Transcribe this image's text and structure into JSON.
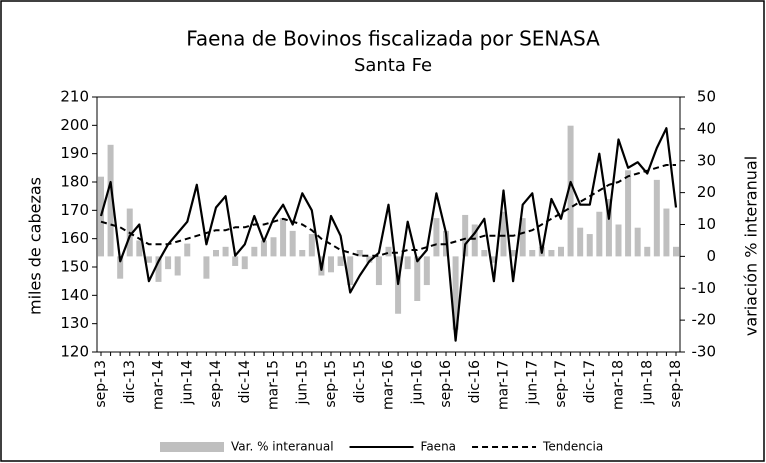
{
  "chart_data": {
    "type": "combo",
    "title": "Faena de Bovinos fiscalizada por SENASA",
    "subtitle": "Santa Fe",
    "y_label": "miles de cabezas",
    "y2_label": "variación % interanual",
    "categories": [
      "sep-13",
      null,
      null,
      "dic-13",
      null,
      null,
      "mar-14",
      null,
      null,
      "jun-14",
      null,
      null,
      "sep-14",
      null,
      null,
      "dic-14",
      null,
      null,
      "mar-15",
      null,
      null,
      "jun-15",
      null,
      null,
      "sep-15",
      null,
      null,
      "dic-15",
      null,
      null,
      "mar-16",
      null,
      null,
      "jun-16",
      null,
      null,
      "sep-16",
      null,
      null,
      "dic-16",
      null,
      null,
      "mar-17",
      null,
      null,
      "jun-17",
      null,
      null,
      "sep-17",
      null,
      null,
      "dic-17",
      null,
      null,
      "mar-18",
      null,
      null,
      "jun-18",
      null,
      null,
      "sep-18"
    ],
    "ylim": [
      120,
      210
    ],
    "yticks": [
      120,
      130,
      140,
      150,
      160,
      170,
      180,
      190,
      200,
      210
    ],
    "y2lim": [
      -30,
      50
    ],
    "y2ticks": [
      -30,
      -20,
      -10,
      0,
      10,
      20,
      30,
      40,
      50
    ],
    "legend": "bottom",
    "series": [
      {
        "name": "Var. % interanual",
        "kind": "bar",
        "axis": "y2",
        "color": "#bfbfbf",
        "values": [
          25,
          35,
          -7,
          15,
          5,
          -2,
          -8,
          -4,
          -6,
          4,
          0,
          -7,
          2,
          3,
          -3,
          -4,
          3,
          5,
          6,
          12,
          8,
          2,
          7,
          -6,
          -5,
          -3,
          -9,
          2,
          -2,
          -9,
          3,
          -18,
          -4,
          -14,
          -9,
          12,
          8,
          -23,
          13,
          10,
          2,
          -2,
          14,
          2,
          12,
          2,
          3,
          2,
          3,
          41,
          9,
          7,
          14,
          18,
          10,
          27,
          9,
          3,
          24,
          15,
          3
        ]
      },
      {
        "name": "Faena",
        "kind": "line",
        "color": "#000000",
        "dashed": false,
        "values": [
          168,
          180,
          152,
          161,
          165,
          145,
          152,
          158,
          162,
          166,
          179,
          158,
          171,
          175,
          154,
          158,
          168,
          159,
          167,
          172,
          165,
          176,
          170,
          149,
          168,
          161,
          141,
          147,
          152,
          155,
          172,
          144,
          166,
          152,
          156,
          176,
          162,
          124,
          158,
          162,
          167,
          145,
          177,
          145,
          172,
          176,
          155,
          174,
          167,
          180,
          172,
          172,
          190,
          167,
          195,
          185,
          187,
          183,
          192,
          199,
          171
        ]
      },
      {
        "name": "Tendencia",
        "kind": "line",
        "color": "#000000",
        "dashed": true,
        "values": [
          166,
          165,
          164,
          162,
          160,
          158,
          158,
          158,
          159,
          160,
          161,
          162,
          163,
          163,
          164,
          164,
          165,
          165,
          166,
          167,
          166,
          165,
          163,
          160,
          158,
          156,
          155,
          154,
          154,
          154,
          155,
          155,
          156,
          156,
          157,
          158,
          158,
          159,
          160,
          160,
          161,
          161,
          161,
          161,
          162,
          163,
          165,
          167,
          169,
          171,
          173,
          175,
          177,
          179,
          180,
          182,
          183,
          184,
          185,
          186,
          186
        ]
      }
    ]
  }
}
